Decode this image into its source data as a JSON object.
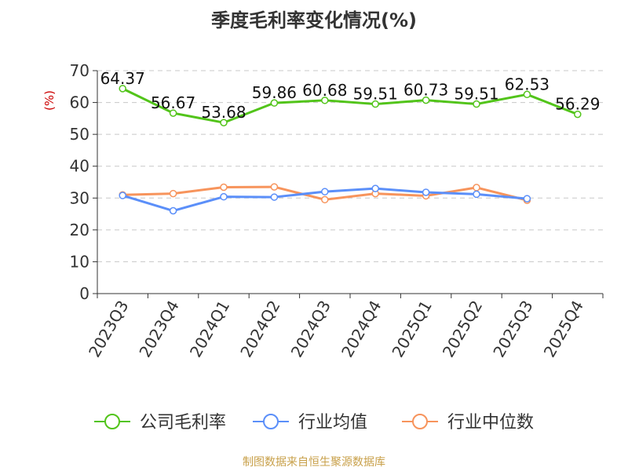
{
  "chart_data": {
    "type": "line",
    "title": "季度毛利率变化情况(%)",
    "ylabel": "(%)",
    "xlabel": "",
    "ylim": [
      0,
      70
    ],
    "yticks": [
      0,
      10,
      20,
      30,
      40,
      50,
      60,
      70
    ],
    "grid": true,
    "legend_position": "bottom",
    "categories": [
      "2023Q3",
      "2023Q4",
      "2024Q1",
      "2024Q2",
      "2024Q3",
      "2024Q4",
      "2025Q1",
      "2025Q2",
      "2025Q3",
      "2025Q4"
    ],
    "series": [
      {
        "name": "公司毛利率",
        "color": "#52c41a",
        "show_labels": true,
        "values": [
          64.37,
          56.67,
          53.68,
          59.86,
          60.68,
          59.51,
          60.73,
          59.51,
          62.53,
          56.29
        ]
      },
      {
        "name": "行业均值",
        "color": "#5b8ff9",
        "show_labels": false,
        "values": [
          30.8,
          26.0,
          30.4,
          30.3,
          32.0,
          33.0,
          31.8,
          31.2,
          29.8,
          null
        ]
      },
      {
        "name": "行业中位数",
        "color": "#f7945c",
        "show_labels": false,
        "values": [
          31.0,
          31.4,
          33.4,
          33.5,
          29.5,
          31.4,
          30.7,
          33.3,
          29.3,
          null
        ]
      }
    ]
  },
  "source": "制图数据来自恒生聚源数据库"
}
